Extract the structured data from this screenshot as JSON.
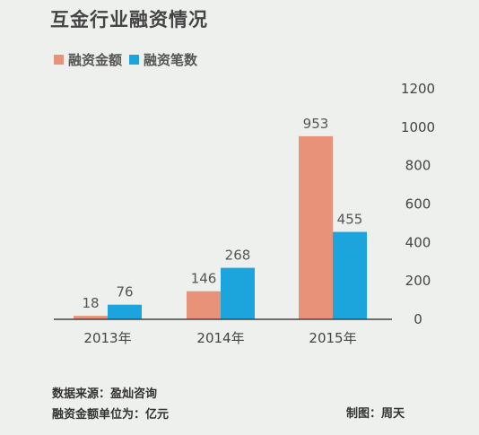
{
  "title": "互金行业融资情况",
  "legend": [
    {
      "label": "融资金额",
      "color": "#e8927a"
    },
    {
      "label": "融资笔数",
      "color": "#1ba5dc"
    }
  ],
  "chart_data": {
    "type": "bar",
    "categories": [
      "2013年",
      "2014年",
      "2015年"
    ],
    "series": [
      {
        "name": "融资金额",
        "values": [
          18,
          146,
          953
        ]
      },
      {
        "name": "融资笔数",
        "values": [
          76,
          268,
          455
        ]
      }
    ],
    "ylim": [
      0,
      1200
    ],
    "yticks": [
      0,
      200,
      400,
      600,
      800,
      1000,
      1200
    ],
    "y_axis_position": "right",
    "grid": false,
    "legend_position": "top-left"
  },
  "footer": {
    "source": "数据来源：盈灿咨询",
    "unit": "融资金额单位为：亿元",
    "credit": "制图：周天"
  }
}
